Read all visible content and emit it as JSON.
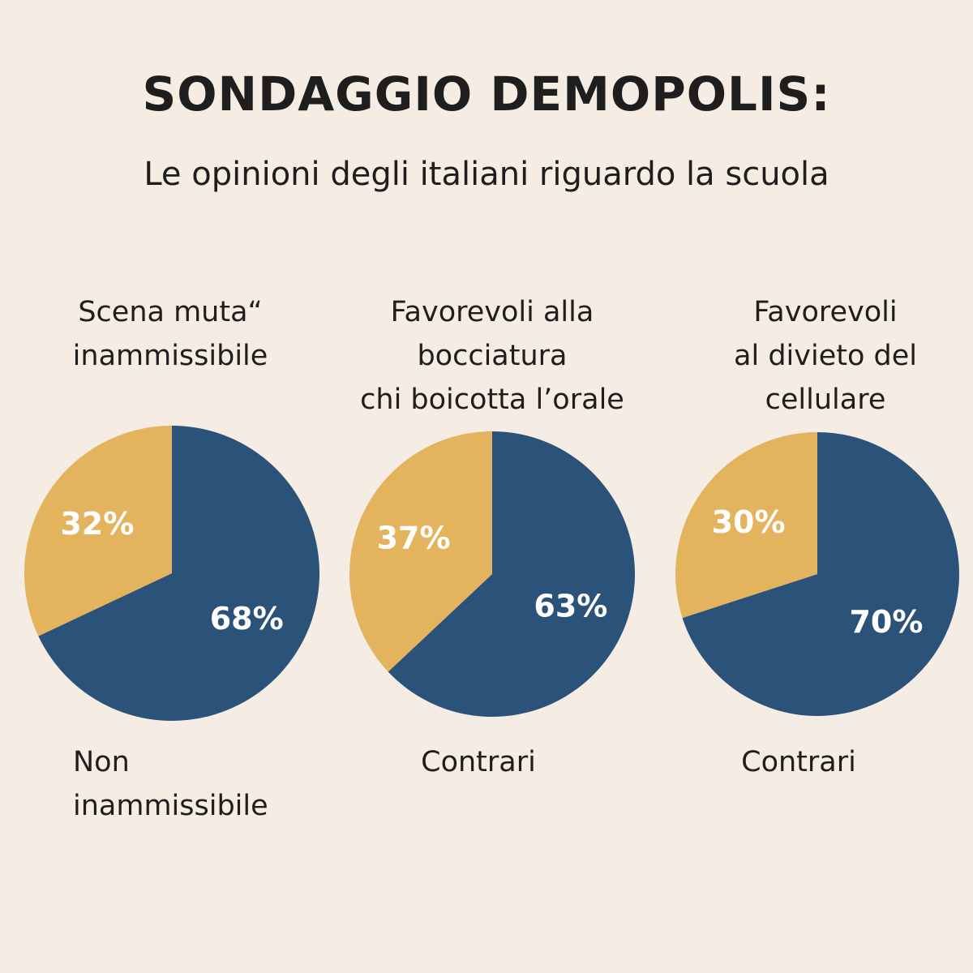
{
  "title": "SONDAGGIO DEMOPOLIS:",
  "subtitle": "Le opinioni degli italiani riguardo la scuola",
  "chart_data": [
    {
      "type": "pie",
      "categories": [
        "Scena muta“\ninammissibile",
        "Non\ninammissibile"
      ],
      "values": [
        68,
        32
      ],
      "value_labels": [
        "68%",
        "32%"
      ],
      "colors": [
        "#2b5279",
        "#e3b35e"
      ]
    },
    {
      "type": "pie",
      "categories": [
        "Favorevoli alla\nbocciatura\nchi boicotta l’orale",
        "Contrari"
      ],
      "values": [
        63,
        37
      ],
      "value_labels": [
        "63%",
        "37%"
      ],
      "colors": [
        "#2b5279",
        "#e3b35e"
      ]
    },
    {
      "type": "pie",
      "categories": [
        "Favorevoli\nal divieto del\ncellulare",
        "Contrari"
      ],
      "values": [
        70,
        30
      ],
      "value_labels": [
        "70%",
        "30%"
      ],
      "colors": [
        "#2b5279",
        "#e3b35e"
      ]
    }
  ]
}
